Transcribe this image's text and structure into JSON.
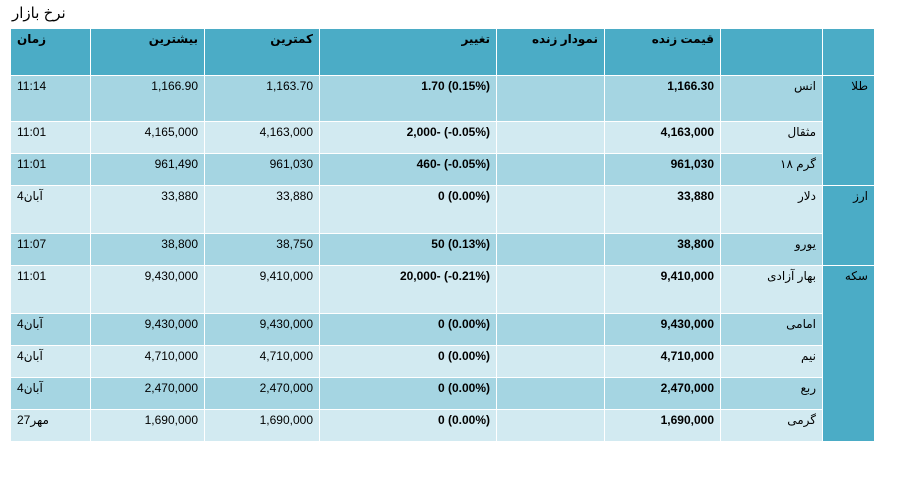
{
  "page_title": "نرخ بازار",
  "headers": {
    "time": "زمان",
    "high": "بیشترین",
    "low": "کمترین",
    "change": "تغییر",
    "live_chart": "نمودار زنده",
    "live_price": "قیمت زنده"
  },
  "categories": {
    "gold": "طلا",
    "currency": "ارز",
    "coin": "سکه"
  },
  "rows": [
    {
      "time": "11:14",
      "high": "1,166.90",
      "low": "1,163.70",
      "change": "1.70 (0.15%)",
      "price": "1,166.30",
      "name": "انس"
    },
    {
      "time": "11:01",
      "high": "4,165,000",
      "low": "4,163,000",
      "change": "2,000- (-0.05%)",
      "price": "4,163,000",
      "name": "مثقال"
    },
    {
      "time": "11:01",
      "high": "961,490",
      "low": "961,030",
      "change": "460- (-0.05%)",
      "price": "961,030",
      "name": "گرم ۱۸"
    },
    {
      "time": "4آبان",
      "high": "33,880",
      "low": "33,880",
      "change": "0 (0.00%)",
      "price": "33,880",
      "name": "دلار"
    },
    {
      "time": "11:07",
      "high": "38,800",
      "low": "38,750",
      "change": "50 (0.13%)",
      "price": "38,800",
      "name": "یورو"
    },
    {
      "time": "11:01",
      "high": "9,430,000",
      "low": "9,410,000",
      "change": "20,000- (-0.21%)",
      "price": "9,410,000",
      "name": "بهار آزادی"
    },
    {
      "time": "4آبان",
      "high": "9,430,000",
      "low": "9,430,000",
      "change": "0 (0.00%)",
      "price": "9,430,000",
      "name": "امامی"
    },
    {
      "time": "4آبان",
      "high": "4,710,000",
      "low": "4,710,000",
      "change": "0 (0.00%)",
      "price": "4,710,000",
      "name": "نیم"
    },
    {
      "time": "4آبان",
      "high": "2,470,000",
      "low": "2,470,000",
      "change": "0 (0.00%)",
      "price": "2,470,000",
      "name": "ربع"
    },
    {
      "time": "27مهر",
      "high": "1,690,000",
      "low": "1,690,000",
      "change": "0 (0.00%)",
      "price": "1,690,000",
      "name": "گرمی"
    }
  ],
  "colors": {
    "header": "#4bacc6",
    "row_light": "#d2eaf1",
    "row_dark": "#a5d5e2"
  }
}
